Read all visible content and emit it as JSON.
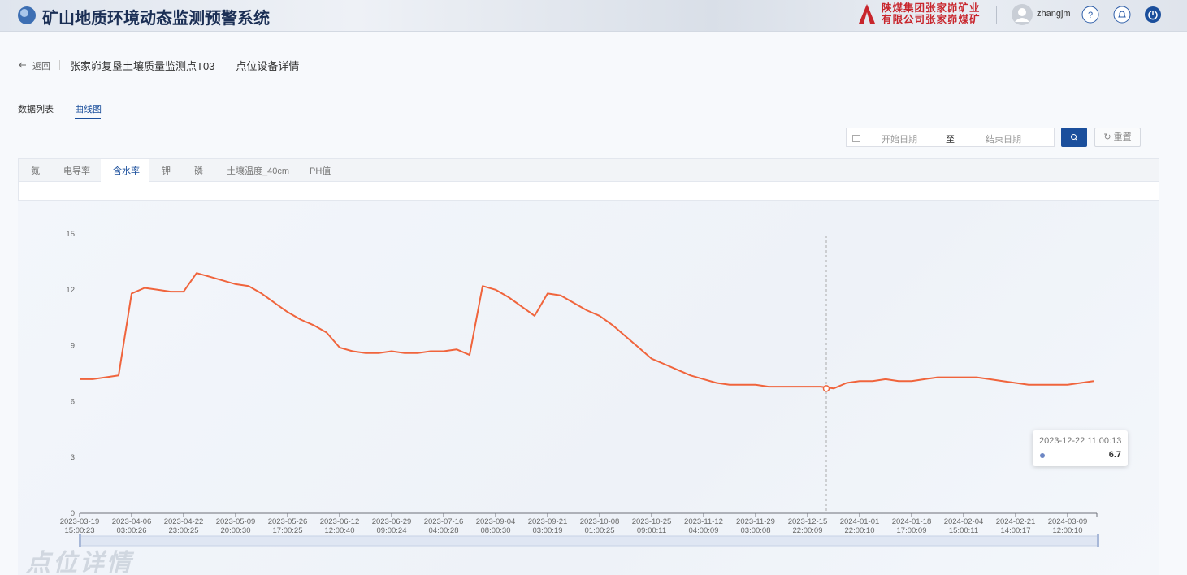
{
  "header": {
    "title": "矿山地质环境动态监测预警系统",
    "company": [
      "陕煤集团张家峁矿业",
      "有限公司张家峁煤矿"
    ],
    "user": "zhangjm"
  },
  "breadcrumb": {
    "back": "返回",
    "title": "张家峁复垦土壤质量监测点T03——点位设备详情"
  },
  "tabs": [
    "数据列表",
    "曲线图"
  ],
  "active_tab": 1,
  "filter": {
    "start_placeholder": "开始日期",
    "separator": "至",
    "end_placeholder": "结束日期",
    "reset": "重置"
  },
  "metric_tabs": [
    "氮",
    "电导率",
    "含水率",
    "钾",
    "磷",
    "土壤温度_40cm",
    "PH值"
  ],
  "active_metric": 2,
  "chart_data": {
    "type": "line",
    "color": "#f0643c",
    "categories": [
      "2023-03-19 15:00:23",
      null,
      null,
      null,
      "2023-04-06 03:00:26",
      null,
      null,
      null,
      "2023-04-22 23:00:25",
      null,
      null,
      null,
      "2023-05-09 20:00:30",
      null,
      null,
      null,
      "2023-05-26 17:00:25",
      null,
      null,
      null,
      "2023-06-12 12:00:40",
      null,
      null,
      null,
      "2023-06-29 09:00:24",
      null,
      null,
      null,
      "2023-07-16 04:00:28",
      null,
      null,
      null,
      "2023-09-04 08:00:30",
      null,
      null,
      null,
      "2023-09-21 03:00:19",
      null,
      null,
      null,
      "2023-10-08 01:00:25",
      null,
      null,
      null,
      "2023-10-25 09:00:11",
      null,
      null,
      null,
      "2023-11-12 04:00:09",
      null,
      null,
      null,
      "2023-11-29 03:00:08",
      null,
      null,
      null,
      "2023-12-15 22:00:09",
      null,
      null,
      null,
      "2024-01-01 22:00:10",
      null,
      null,
      null,
      "2024-01-18 17:00:09",
      null,
      null,
      null,
      "2024-02-04 15:00:11",
      null,
      null,
      null,
      "2024-02-21 14:00:17",
      null,
      null,
      null,
      "2024-03-09 12:00:10",
      null,
      null
    ],
    "values": [
      7.2,
      7.2,
      7.3,
      7.4,
      11.8,
      12.1,
      12.0,
      11.9,
      11.9,
      12.9,
      12.7,
      12.5,
      12.3,
      12.2,
      11.8,
      11.3,
      10.8,
      10.4,
      10.1,
      9.7,
      8.9,
      8.7,
      8.6,
      8.6,
      8.7,
      8.6,
      8.6,
      8.7,
      8.7,
      8.8,
      8.5,
      12.2,
      12.0,
      11.6,
      11.1,
      10.6,
      11.8,
      11.7,
      11.3,
      10.9,
      10.6,
      10.1,
      9.5,
      8.9,
      8.3,
      8.0,
      7.7,
      7.4,
      7.2,
      7.0,
      6.9,
      6.9,
      6.9,
      6.8,
      6.8,
      6.8,
      6.8,
      6.8,
      6.7,
      7.0,
      7.1,
      7.1,
      7.2,
      7.1,
      7.1,
      7.2,
      7.3,
      7.3,
      7.3,
      7.3,
      7.2,
      7.1,
      7.0,
      6.9,
      6.9,
      6.9,
      6.9,
      7.0,
      7.1
    ],
    "ylim": [
      0,
      15
    ],
    "yticks": [
      0,
      3,
      6,
      9,
      12,
      15
    ],
    "tooltip": {
      "label": "2023-12-22 11:00:13",
      "value": 6.7
    }
  },
  "watermark": "点位详情"
}
